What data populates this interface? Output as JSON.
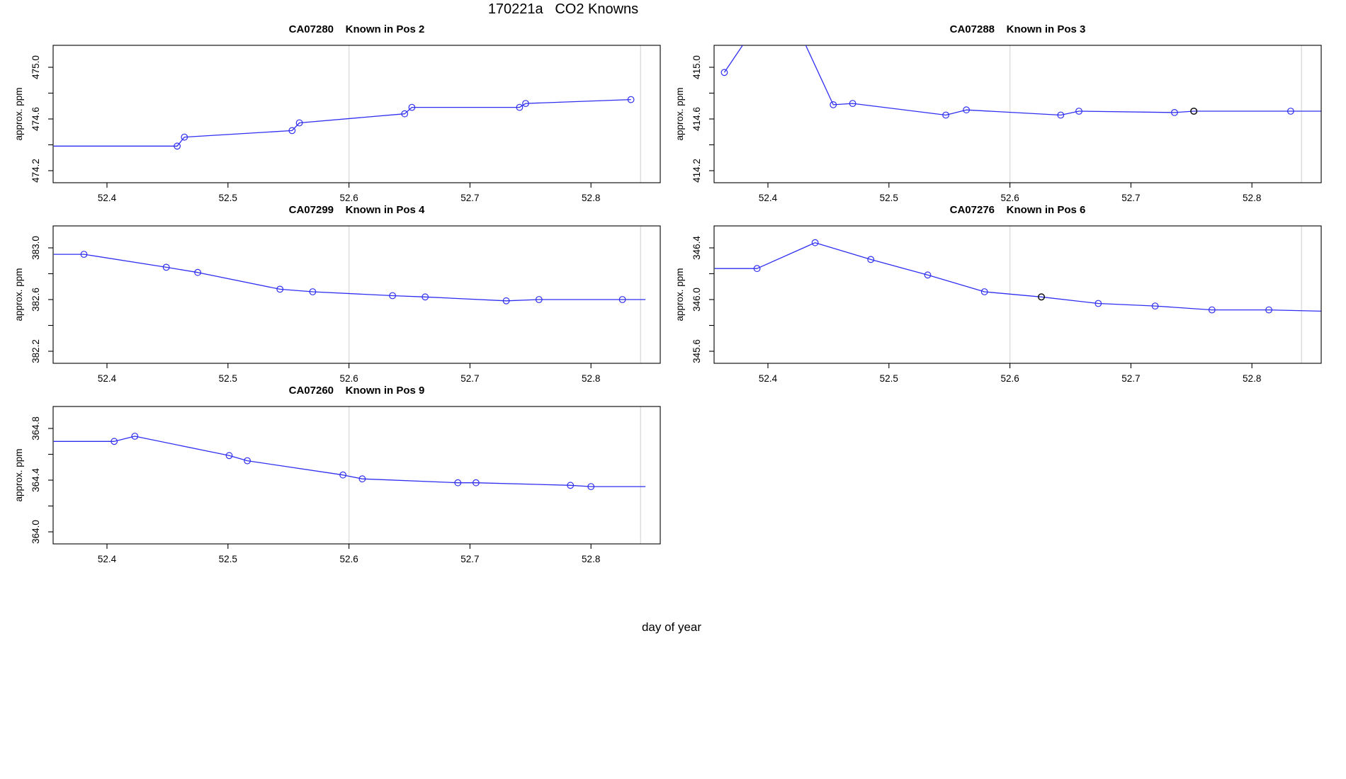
{
  "main_title": "170221a   CO2 Knowns",
  "outer_xlabel": "day of year",
  "axis_ylabel": "approx. ppm",
  "x_axis": {
    "label": "day of year",
    "tick_labels": [
      "52.4",
      "52.5",
      "52.6",
      "52.7",
      "52.8"
    ],
    "tick_values": [
      52.4,
      52.5,
      52.6,
      52.7,
      52.8
    ],
    "range": [
      52.356,
      52.857
    ],
    "gridlines": [
      52.6,
      52.841
    ]
  },
  "colors": {
    "line": "#2e2ef2",
    "marker": "#2e2ef2",
    "dark_marker": "#111111",
    "grid": "#dcdcdc",
    "axis": "#000000",
    "text": "#000000"
  },
  "chart_data": [
    {
      "type": "line",
      "sample_id": "CA07280",
      "position_label": "Known in Pos 2",
      "title": "CA07280    Known in Pos 2",
      "col": 0,
      "row": 0,
      "ylabel": "approx. ppm",
      "y_tick_labels": [
        "475.0",
        "474.6",
        "474.2"
      ],
      "vhi": 475.0,
      "ylim": [
        474.11,
        475.15
      ],
      "points": [
        {
          "x": 52.356,
          "y": 474.39,
          "m": 0
        },
        {
          "x": 52.458,
          "y": 474.39,
          "m": 1
        },
        {
          "x": 52.464,
          "y": 474.46,
          "m": 1
        },
        {
          "x": 52.553,
          "y": 474.51,
          "m": 1
        },
        {
          "x": 52.559,
          "y": 474.57,
          "m": 1
        },
        {
          "x": 52.646,
          "y": 474.64,
          "m": 1
        },
        {
          "x": 52.652,
          "y": 474.69,
          "m": 1
        },
        {
          "x": 52.741,
          "y": 474.69,
          "m": 1
        },
        {
          "x": 52.746,
          "y": 474.72,
          "m": 1
        },
        {
          "x": 52.833,
          "y": 474.75,
          "m": 1
        }
      ],
      "black": []
    },
    {
      "type": "line",
      "sample_id": "CA07288",
      "position_label": "Known in Pos 3",
      "title": "CA07288    Known in Pos 3",
      "col": 1,
      "row": 0,
      "ylabel": "approx. ppm",
      "y_tick_labels": [
        "415.0",
        "414.6",
        "414.2"
      ],
      "vhi": 415.0,
      "ylim": [
        414.11,
        415.15
      ],
      "points": [
        {
          "x": 52.364,
          "y": 414.96,
          "m": 1
        },
        {
          "x": 52.41,
          "y": 415.6,
          "m": 0
        },
        {
          "x": 52.454,
          "y": 414.71,
          "m": 1
        },
        {
          "x": 52.47,
          "y": 414.72,
          "m": 1
        },
        {
          "x": 52.547,
          "y": 414.63,
          "m": 1
        },
        {
          "x": 52.564,
          "y": 414.67,
          "m": 1
        },
        {
          "x": 52.642,
          "y": 414.63,
          "m": 1
        },
        {
          "x": 52.657,
          "y": 414.66,
          "m": 1
        },
        {
          "x": 52.736,
          "y": 414.65,
          "m": 1
        },
        {
          "x": 52.752,
          "y": 414.66,
          "m": 1
        },
        {
          "x": 52.832,
          "y": 414.66,
          "m": 1
        },
        {
          "x": 52.857,
          "y": 414.66,
          "m": 0
        }
      ],
      "black": [
        9
      ]
    },
    {
      "type": "line",
      "sample_id": "CA07299",
      "position_label": "Known in Pos 4",
      "title": "CA07299    Known in Pos 4",
      "col": 0,
      "row": 1,
      "ylabel": "approx. ppm",
      "y_tick_labels": [
        "383.0",
        "382.6",
        "382.2"
      ],
      "vhi": 383.0,
      "ylim": [
        382.11,
        383.15
      ],
      "points": [
        {
          "x": 52.356,
          "y": 382.95,
          "m": 0
        },
        {
          "x": 52.381,
          "y": 382.95,
          "m": 1
        },
        {
          "x": 52.449,
          "y": 382.85,
          "m": 1
        },
        {
          "x": 52.475,
          "y": 382.81,
          "m": 1
        },
        {
          "x": 52.543,
          "y": 382.68,
          "m": 1
        },
        {
          "x": 52.57,
          "y": 382.66,
          "m": 1
        },
        {
          "x": 52.636,
          "y": 382.63,
          "m": 1
        },
        {
          "x": 52.663,
          "y": 382.62,
          "m": 1
        },
        {
          "x": 52.73,
          "y": 382.59,
          "m": 1
        },
        {
          "x": 52.757,
          "y": 382.6,
          "m": 1
        },
        {
          "x": 52.826,
          "y": 382.6,
          "m": 1
        },
        {
          "x": 52.845,
          "y": 382.6,
          "m": 0
        }
      ],
      "black": []
    },
    {
      "type": "line",
      "sample_id": "CA07276",
      "position_label": "Known in Pos 6",
      "title": "CA07276    Known in Pos 6",
      "col": 1,
      "row": 1,
      "ylabel": "approx. ppm",
      "y_tick_labels": [
        "346.4",
        "346.0",
        "345.6"
      ],
      "vhi": 346.4,
      "ylim": [
        345.51,
        346.55
      ],
      "points": [
        {
          "x": 52.356,
          "y": 346.24,
          "m": 0
        },
        {
          "x": 52.391,
          "y": 346.24,
          "m": 1
        },
        {
          "x": 52.439,
          "y": 346.44,
          "m": 1
        },
        {
          "x": 52.485,
          "y": 346.31,
          "m": 1
        },
        {
          "x": 52.532,
          "y": 346.19,
          "m": 1
        },
        {
          "x": 52.579,
          "y": 346.06,
          "m": 1
        },
        {
          "x": 52.626,
          "y": 346.02,
          "m": 1
        },
        {
          "x": 52.673,
          "y": 345.97,
          "m": 1
        },
        {
          "x": 52.72,
          "y": 345.95,
          "m": 1
        },
        {
          "x": 52.767,
          "y": 345.92,
          "m": 1
        },
        {
          "x": 52.814,
          "y": 345.92,
          "m": 1
        },
        {
          "x": 52.857,
          "y": 345.91,
          "m": 0
        }
      ],
      "black": [
        6
      ]
    },
    {
      "type": "line",
      "sample_id": "CA07260",
      "position_label": "Known in Pos 9",
      "title": "CA07260    Known in Pos 9",
      "col": 0,
      "row": 2,
      "ylabel": "approx. ppm",
      "y_tick_labels": [
        "364.8",
        "364.4",
        "364.0"
      ],
      "vhi": 364.8,
      "ylim": [
        363.91,
        364.95
      ],
      "points": [
        {
          "x": 52.356,
          "y": 364.7,
          "m": 0
        },
        {
          "x": 52.406,
          "y": 364.7,
          "m": 1
        },
        {
          "x": 52.423,
          "y": 364.74,
          "m": 1
        },
        {
          "x": 52.501,
          "y": 364.59,
          "m": 1
        },
        {
          "x": 52.516,
          "y": 364.55,
          "m": 1
        },
        {
          "x": 52.595,
          "y": 364.44,
          "m": 1
        },
        {
          "x": 52.611,
          "y": 364.41,
          "m": 1
        },
        {
          "x": 52.69,
          "y": 364.38,
          "m": 1
        },
        {
          "x": 52.705,
          "y": 364.38,
          "m": 1
        },
        {
          "x": 52.783,
          "y": 364.36,
          "m": 1
        },
        {
          "x": 52.8,
          "y": 364.35,
          "m": 1
        },
        {
          "x": 52.845,
          "y": 364.35,
          "m": 0
        }
      ],
      "black": []
    }
  ]
}
